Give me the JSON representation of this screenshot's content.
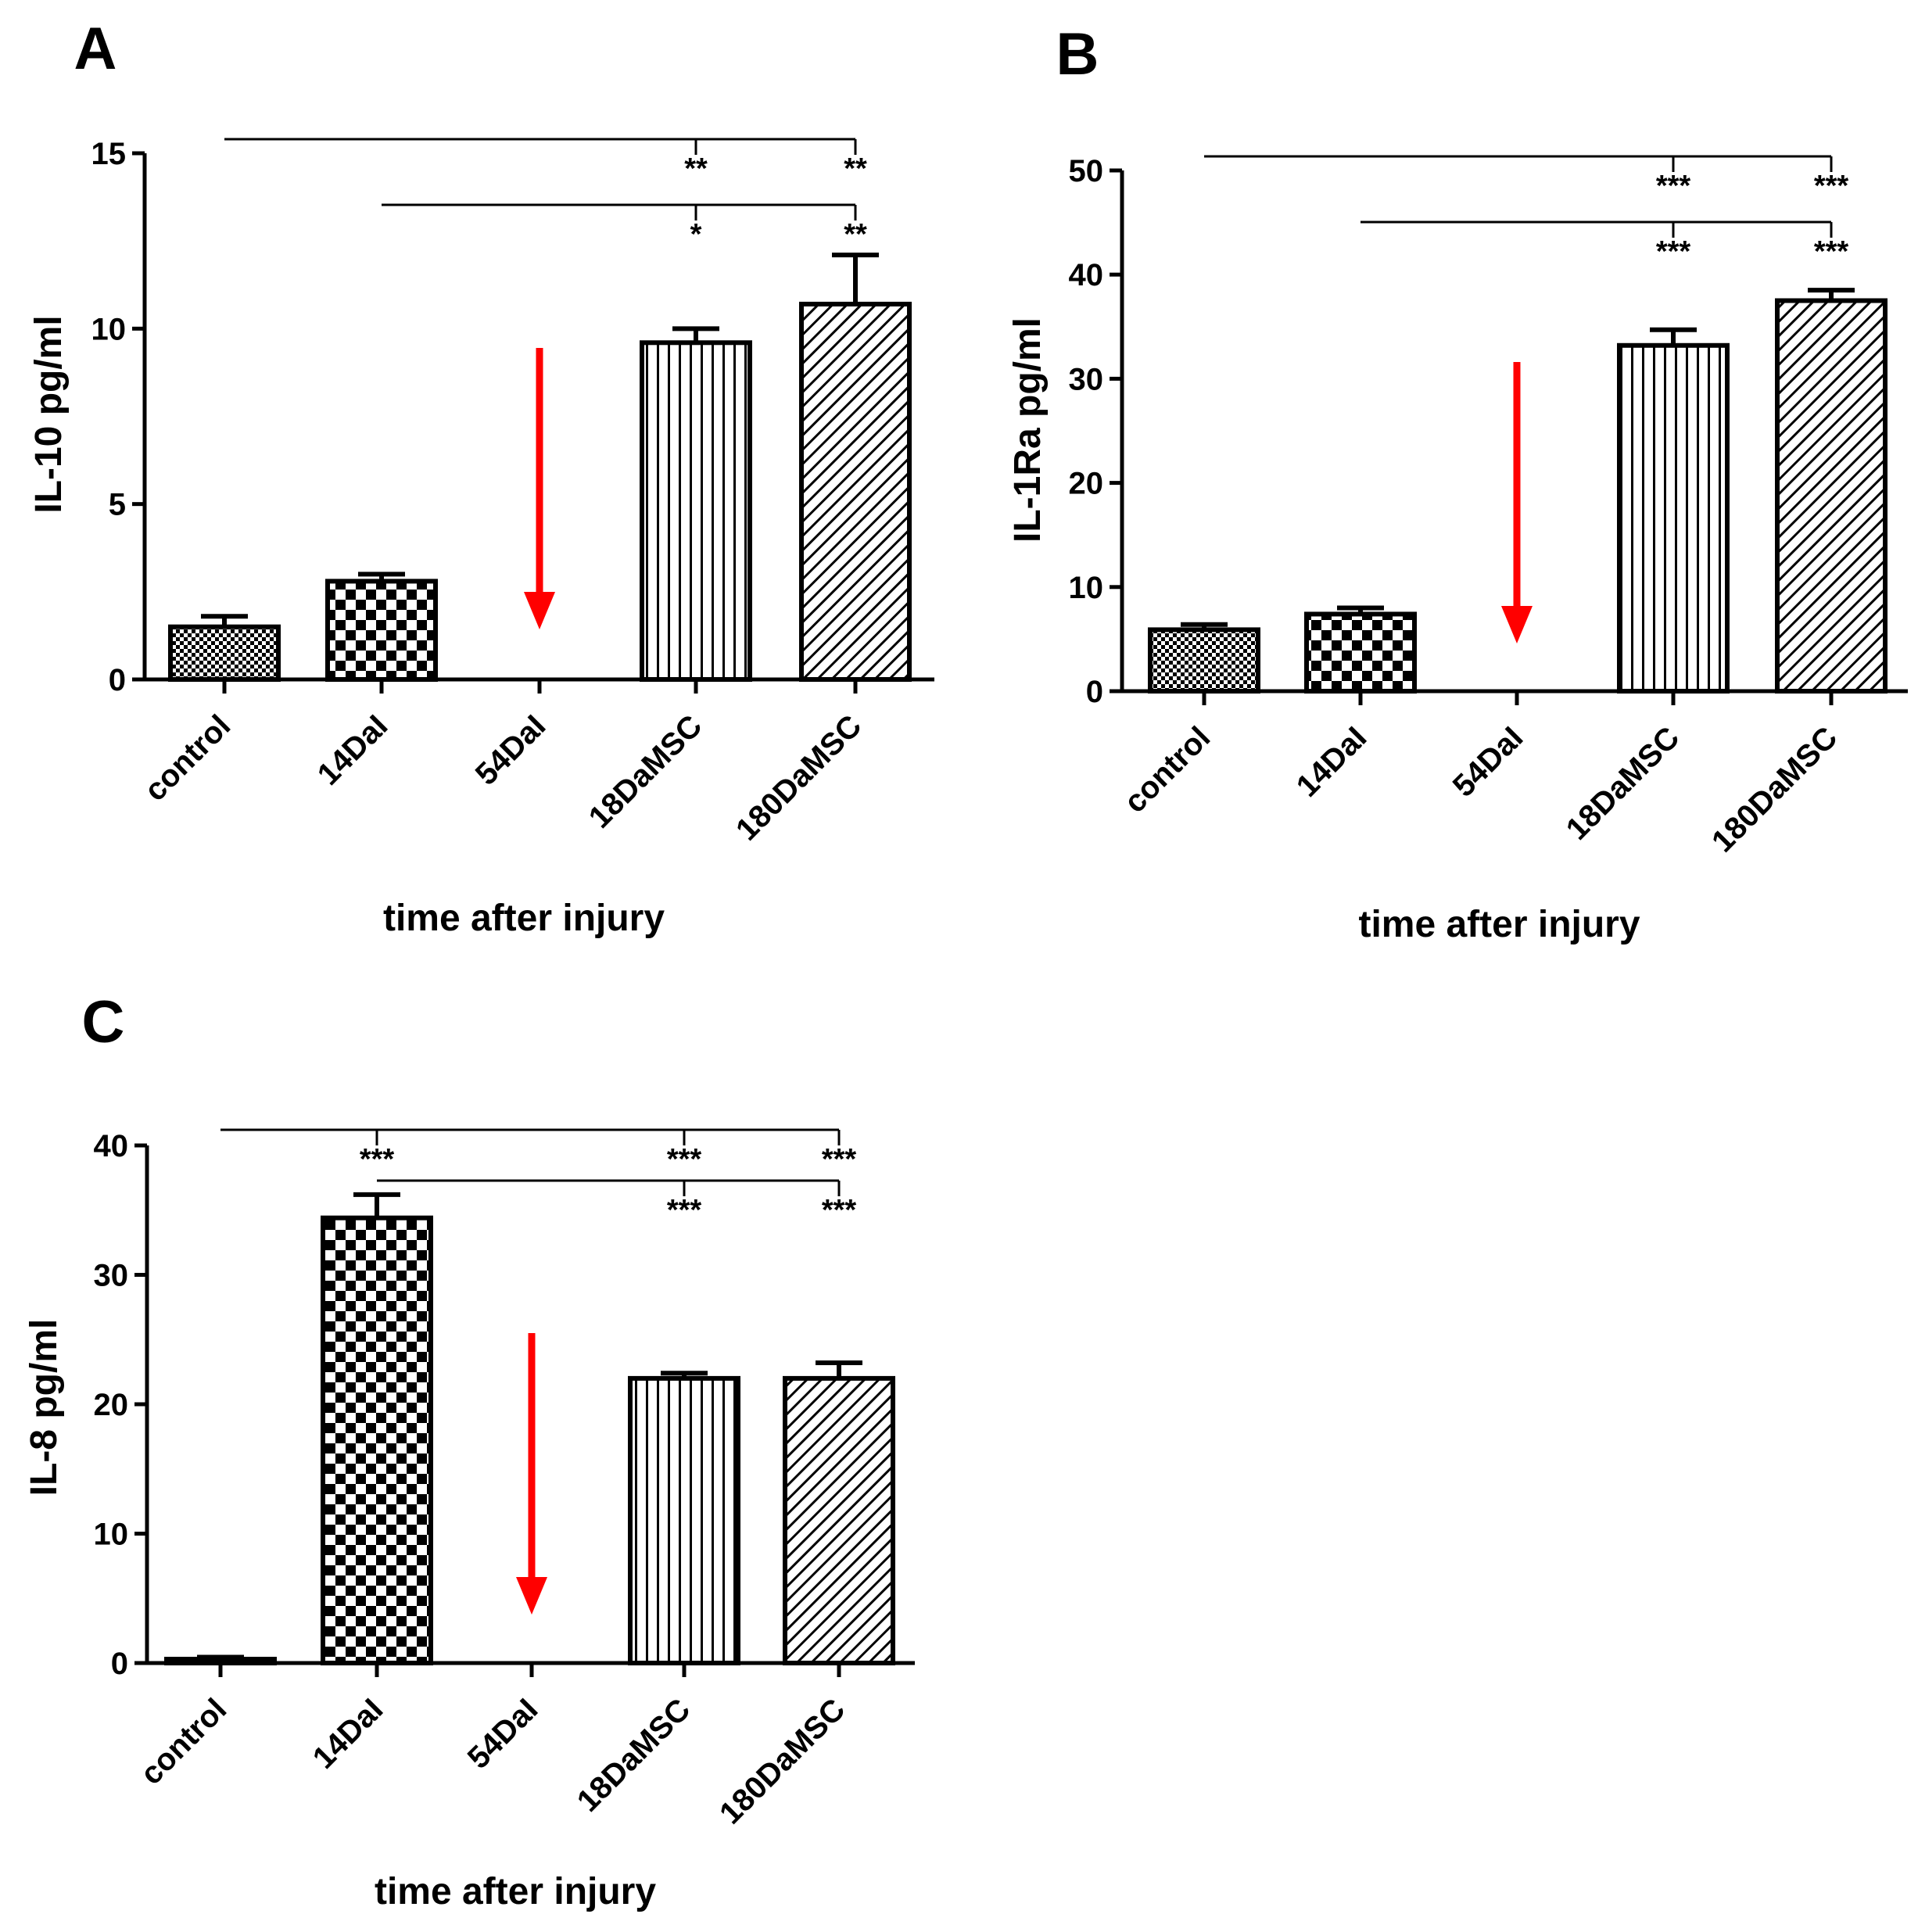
{
  "chart_data": [
    {
      "panel": "A",
      "type": "bar",
      "title": "",
      "xlabel": "time after injury",
      "ylabel": "IL-10 pg/ml",
      "ylim": [
        0,
        15
      ],
      "yticks": [
        0,
        5,
        10,
        15
      ],
      "categories": [
        "control",
        "14DaI",
        "54DaI",
        "18DaMSC",
        "180DaMSC"
      ],
      "values": [
        1.5,
        2.8,
        null,
        9.6,
        10.7
      ],
      "errors": [
        0.3,
        0.2,
        null,
        0.4,
        1.4
      ],
      "patterns": [
        "fine",
        "checker",
        "none",
        "vertical",
        "diagonal"
      ],
      "arrow_category": "54DaI",
      "significance": [
        {
          "from": "control",
          "targets": [
            "18DaMSC",
            "180DaMSC"
          ],
          "labels": [
            "**",
            "**"
          ]
        },
        {
          "from": "14DaI",
          "targets": [
            "18DaMSC",
            "180DaMSC"
          ],
          "labels": [
            "*",
            "**"
          ]
        }
      ]
    },
    {
      "panel": "B",
      "type": "bar",
      "title": "",
      "xlabel": "time after injury",
      "ylabel": "IL-1Ra pg/ml",
      "ylim": [
        0,
        50
      ],
      "yticks": [
        0,
        10,
        20,
        30,
        40,
        50
      ],
      "categories": [
        "control",
        "14DaI",
        "54DaI",
        "18DaMSC",
        "180DaMSC"
      ],
      "values": [
        5.9,
        7.4,
        null,
        33.2,
        37.5
      ],
      "errors": [
        0.5,
        0.6,
        null,
        1.5,
        1.0
      ],
      "patterns": [
        "fine",
        "checker",
        "none",
        "vertical",
        "diagonal"
      ],
      "arrow_category": "54DaI",
      "significance": [
        {
          "from": "control",
          "targets": [
            "18DaMSC",
            "180DaMSC"
          ],
          "labels": [
            "***",
            "***"
          ]
        },
        {
          "from": "14DaI",
          "targets": [
            "18DaMSC",
            "180DaMSC"
          ],
          "labels": [
            "***",
            "***"
          ]
        }
      ]
    },
    {
      "panel": "C",
      "type": "bar",
      "title": "",
      "xlabel": "time after injury",
      "ylabel": "IL-8 pg/ml",
      "ylim": [
        0,
        40
      ],
      "yticks": [
        0,
        10,
        20,
        30,
        40
      ],
      "categories": [
        "control",
        "14DaI",
        "54DaI",
        "18DaMSC",
        "180DaMSC"
      ],
      "values": [
        0.3,
        34.4,
        null,
        22.0,
        22.0
      ],
      "errors": [
        0.15,
        1.8,
        null,
        0.4,
        1.2
      ],
      "patterns": [
        "fine",
        "checker",
        "none",
        "vertical",
        "diagonal"
      ],
      "arrow_category": "54DaI",
      "significance": [
        {
          "from": "control",
          "targets": [
            "14DaI",
            "18DaMSC",
            "180DaMSC"
          ],
          "labels": [
            "***",
            "***",
            "***"
          ]
        },
        {
          "from": "14DaI",
          "targets": [
            "18DaMSC",
            "180DaMSC"
          ],
          "labels": [
            "***",
            "***"
          ]
        }
      ]
    }
  ],
  "colors": {
    "axis": "#000000",
    "bar_fill": "#ffffff",
    "arrow": "#ff0000"
  }
}
